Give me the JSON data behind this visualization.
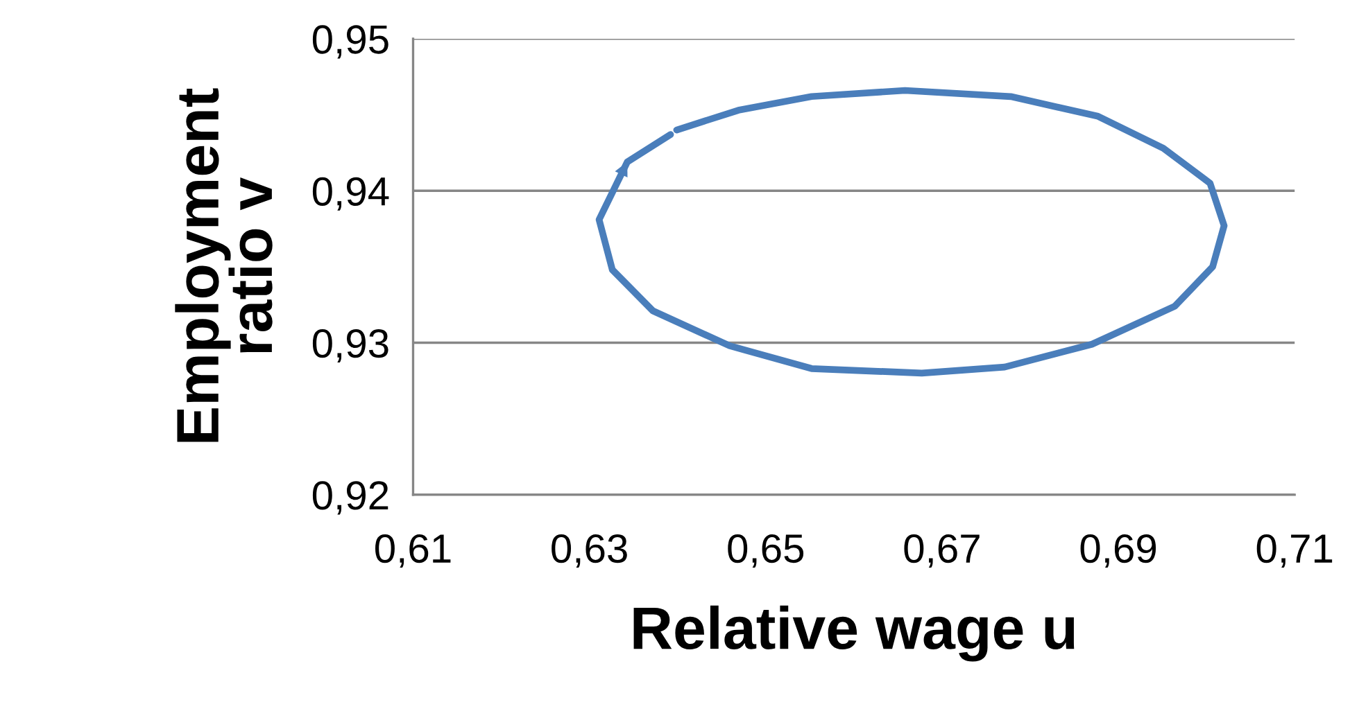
{
  "chart_data": {
    "type": "line",
    "xlabel": "Relative wage u",
    "ylabel": "Employment\nratio v",
    "series": [
      {
        "color": "#4a7ebb",
        "x": [
          0.6399,
          0.6469,
          0.6552,
          0.6658,
          0.6778,
          0.6877,
          0.6951,
          0.7004,
          0.702,
          0.7007,
          0.6964,
          0.687,
          0.6771,
          0.6677,
          0.6552,
          0.6459,
          0.6372,
          0.6326,
          0.6311,
          0.6343,
          0.6392
        ],
        "values": [
          0.944,
          0.9453,
          0.9462,
          0.9466,
          0.9462,
          0.9449,
          0.9428,
          0.9405,
          0.9377,
          0.935,
          0.9324,
          0.9299,
          0.9284,
          0.928,
          0.9283,
          0.9298,
          0.9321,
          0.9348,
          0.9381,
          0.9419,
          0.9437
        ]
      }
    ],
    "xlim": [
      0.61,
      0.71
    ],
    "xticks": [
      {
        "value": 0.61,
        "label": "0,61"
      },
      {
        "value": 0.63,
        "label": "0,63"
      },
      {
        "value": 0.65,
        "label": "0,65"
      },
      {
        "value": 0.67,
        "label": "0,67"
      },
      {
        "value": 0.69,
        "label": "0,69"
      },
      {
        "value": 0.71,
        "label": "0,71"
      }
    ],
    "ylim": [
      0.92,
      0.95
    ],
    "yticks": [
      {
        "value": 0.92,
        "label": "0,92"
      },
      {
        "value": 0.93,
        "label": "0,93"
      },
      {
        "value": 0.94,
        "label": "0,94"
      },
      {
        "value": 0.95,
        "label": "0,95"
      }
    ],
    "grid": "y",
    "marker": "none",
    "line_style": "solid",
    "legend": false
  }
}
